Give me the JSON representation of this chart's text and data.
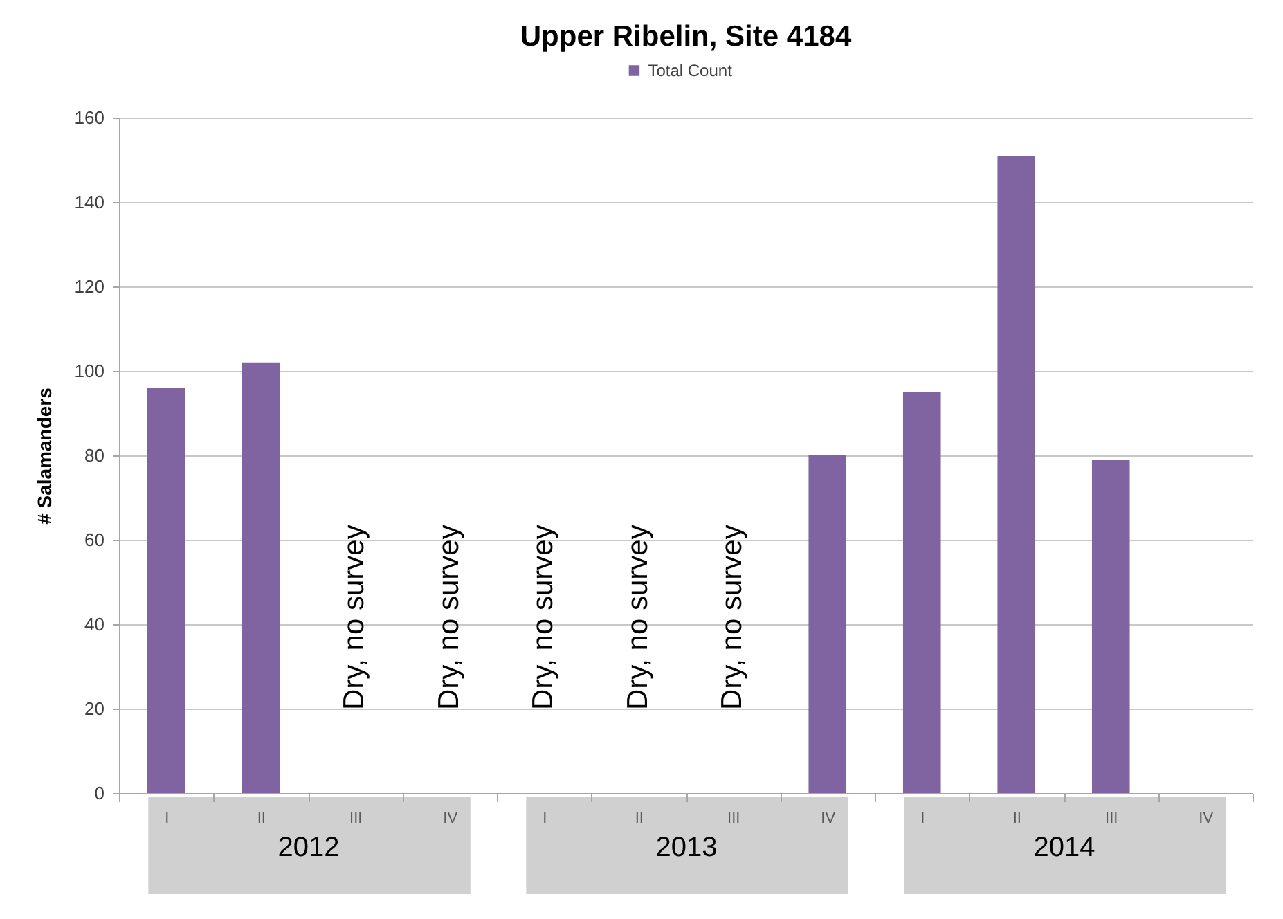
{
  "chart_data": [
    {
      "type": "bar",
      "xlabel": "2012",
      "ylabel": "# Salamanders",
      "categories": [
        "I",
        "II",
        "III",
        "IV"
      ],
      "series": [
        {
          "color": "#8064a2",
          "values": [
            96,
            102,
            null,
            null
          ],
          "value_labels": [
            null,
            null,
            "Dry, no survey",
            "Dry, no survey"
          ]
        }
      ],
      "ylim": [
        0,
        160
      ],
      "yticks": [
        0,
        20,
        40,
        60,
        80,
        100,
        120,
        140,
        160
      ],
      "grid": "y"
    },
    {
      "type": "bar",
      "title": "Upper Ribelin, Site 4184",
      "xlabel": "2013",
      "categories": [
        "I",
        "II",
        "III",
        "IV"
      ],
      "series": [
        {
          "name": "Total Count",
          "color": "#8064a2",
          "values": [
            null,
            null,
            null,
            80
          ],
          "value_labels": [
            "Dry, no survey",
            "Dry, no survey",
            "Dry, no survey",
            null
          ]
        }
      ],
      "ylim": [
        0,
        160
      ],
      "yticks": [
        0,
        20,
        40,
        60,
        80,
        100,
        120,
        140,
        160
      ],
      "grid": "y",
      "legend": "top",
      "tick_labels": "x"
    },
    {
      "type": "bar",
      "xlabel": "2014",
      "categories": [
        "I",
        "II",
        "III",
        "IV"
      ],
      "series": [
        {
          "color": "#8064a2",
          "values": [
            95,
            151,
            79,
            null
          ]
        }
      ],
      "ylim": [
        0,
        160
      ],
      "yticks": [
        0,
        20,
        40,
        60,
        80,
        100,
        120,
        140,
        160
      ],
      "grid": "y",
      "tick_labels": "x"
    }
  ]
}
